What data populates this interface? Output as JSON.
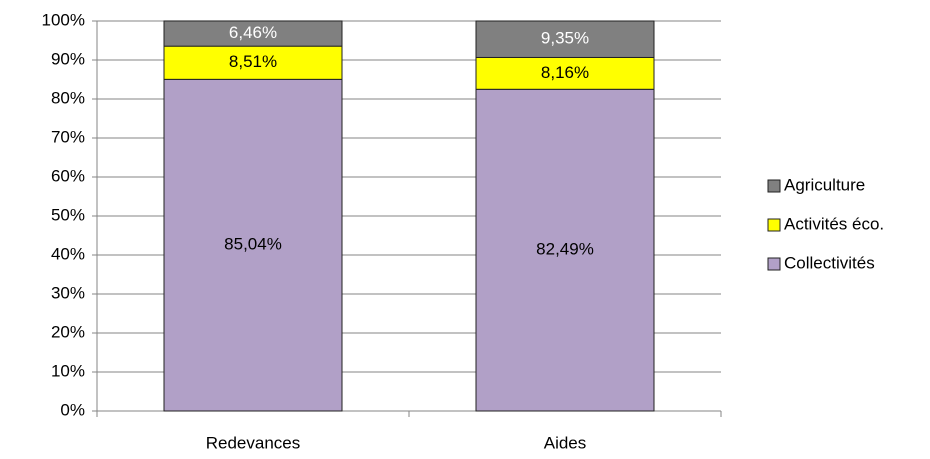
{
  "chart_data": {
    "type": "stacked_bar_percent",
    "categories": [
      "Redevances",
      "Aides"
    ],
    "series": [
      {
        "name": "Collectivités",
        "color": "#b1a0c7",
        "label_color": "#000000",
        "values": [
          85.04,
          82.49
        ],
        "value_labels": [
          "85,04%",
          "82,49%"
        ]
      },
      {
        "name": "Activités éco.",
        "color": "#ffff00",
        "label_color": "#000000",
        "values": [
          8.51,
          8.16
        ],
        "value_labels": [
          "8,51%",
          "8,16%"
        ]
      },
      {
        "name": "Agriculture",
        "color": "#808080",
        "label_color": "#ffffff",
        "values": [
          6.46,
          9.35
        ],
        "value_labels": [
          "6,46%",
          "9,35%"
        ]
      }
    ],
    "ylim": [
      0,
      100
    ],
    "yticks": [
      {
        "value": 0,
        "label": "0%"
      },
      {
        "value": 10,
        "label": "10%"
      },
      {
        "value": 20,
        "label": "20%"
      },
      {
        "value": 30,
        "label": "30%"
      },
      {
        "value": 40,
        "label": "40%"
      },
      {
        "value": 50,
        "label": "50%"
      },
      {
        "value": 60,
        "label": "60%"
      },
      {
        "value": 70,
        "label": "70%"
      },
      {
        "value": 80,
        "label": "80%"
      },
      {
        "value": 90,
        "label": "90%"
      },
      {
        "value": 100,
        "label": "100%"
      }
    ],
    "grid": true,
    "legend": "right"
  }
}
